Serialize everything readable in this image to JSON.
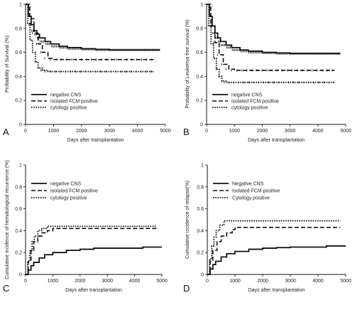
{
  "colors": {
    "line": "#111111",
    "background": "#ffffff"
  },
  "chart_data": [
    {
      "type": "line",
      "panel_letter": "A",
      "xlabel": "Days after transplantation",
      "ylabel": "Probability of Survival (%)",
      "xlim": [
        0,
        5000
      ],
      "ylim": [
        0,
        1
      ],
      "xticks": [
        "0",
        "1000",
        "2000",
        "3000",
        "4000",
        "5000"
      ],
      "yticks": [
        "0",
        "0.2",
        "0.4",
        "0.6",
        "0.8",
        "1"
      ],
      "legend_position": "bottom-left",
      "series": [
        {
          "name": "negative CNS",
          "style": "solid",
          "censored": true,
          "x": [
            0,
            100,
            200,
            300,
            400,
            500,
            700,
            900,
            1200,
            1500,
            2000,
            2500,
            3000,
            3500,
            4000,
            4500,
            4800
          ],
          "y": [
            1.0,
            0.9,
            0.83,
            0.78,
            0.75,
            0.72,
            0.69,
            0.67,
            0.65,
            0.64,
            0.63,
            0.625,
            0.62,
            0.62,
            0.62,
            0.62,
            0.62
          ]
        },
        {
          "name": "isolated FCM positive",
          "style": "dashed",
          "censored": true,
          "x": [
            0,
            150,
            300,
            450,
            600,
            800,
            1000,
            4600
          ],
          "y": [
            1.0,
            0.88,
            0.76,
            0.67,
            0.6,
            0.55,
            0.54,
            0.54
          ]
        },
        {
          "name": "cytology positive",
          "style": "dotted",
          "censored": true,
          "x": [
            0,
            80,
            160,
            250,
            350,
            450,
            600,
            800,
            4600
          ],
          "y": [
            1.0,
            0.84,
            0.7,
            0.6,
            0.52,
            0.47,
            0.45,
            0.44,
            0.44
          ]
        }
      ]
    },
    {
      "type": "line",
      "panel_letter": "B",
      "xlabel": "Days after transplantation",
      "ylabel": "Probability of Leukemia free survival (%)",
      "xlim": [
        0,
        5000
      ],
      "ylim": [
        0,
        1
      ],
      "xticks": [
        "0",
        "1000",
        "2000",
        "3000",
        "4000",
        "5000"
      ],
      "yticks": [
        "0",
        "0.2",
        "0.4",
        "0.6",
        "0.8",
        "1"
      ],
      "legend_position": "bottom-left",
      "series": [
        {
          "name": "negative CNS",
          "style": "solid",
          "censored": true,
          "x": [
            0,
            100,
            200,
            300,
            400,
            500,
            700,
            900,
            1200,
            1500,
            2000,
            2500,
            3000,
            3500,
            4000,
            4500,
            4800
          ],
          "y": [
            1.0,
            0.9,
            0.82,
            0.76,
            0.72,
            0.69,
            0.66,
            0.64,
            0.62,
            0.61,
            0.6,
            0.595,
            0.59,
            0.59,
            0.59,
            0.59,
            0.59
          ]
        },
        {
          "name": "isolated FCM positive",
          "style": "dashed",
          "censored": true,
          "x": [
            0,
            150,
            300,
            450,
            600,
            800,
            1000,
            4600
          ],
          "y": [
            1.0,
            0.82,
            0.68,
            0.58,
            0.5,
            0.46,
            0.45,
            0.45
          ]
        },
        {
          "name": "cytology positive",
          "style": "dotted",
          "censored": true,
          "x": [
            0,
            80,
            160,
            250,
            350,
            450,
            550,
            700,
            4600
          ],
          "y": [
            1.0,
            0.82,
            0.67,
            0.55,
            0.46,
            0.4,
            0.36,
            0.35,
            0.35
          ]
        }
      ]
    },
    {
      "type": "line",
      "panel_letter": "C",
      "xlabel": "Days after transplantation",
      "ylabel": "Cumulative incidence of hematological recurrence (%)",
      "xlim": [
        0,
        5000
      ],
      "ylim": [
        0,
        1
      ],
      "xticks": [
        "0",
        "1000",
        "2000",
        "3000",
        "4000",
        "5000"
      ],
      "yticks": [
        "0",
        "0.2",
        "0.4",
        "0.6",
        "0.8",
        "1"
      ],
      "legend_position": "top-left",
      "series": [
        {
          "name": "negative CNS",
          "style": "solid",
          "censored": false,
          "x": [
            0,
            100,
            200,
            300,
            500,
            700,
            1000,
            1500,
            2000,
            2500,
            3000,
            3500,
            4200,
            4300,
            5000
          ],
          "y": [
            0,
            0.04,
            0.08,
            0.11,
            0.15,
            0.18,
            0.2,
            0.22,
            0.23,
            0.24,
            0.24,
            0.24,
            0.24,
            0.25,
            0.25
          ]
        },
        {
          "name": "isolated FCM positive",
          "style": "dashed",
          "censored": false,
          "x": [
            0,
            100,
            200,
            300,
            450,
            600,
            800,
            1000,
            4800
          ],
          "y": [
            0,
            0.12,
            0.22,
            0.3,
            0.35,
            0.38,
            0.4,
            0.42,
            0.42
          ]
        },
        {
          "name": "cytology positive",
          "style": "dotted",
          "censored": false,
          "x": [
            0,
            80,
            160,
            240,
            320,
            450,
            600,
            800,
            4800
          ],
          "y": [
            0,
            0.12,
            0.22,
            0.3,
            0.35,
            0.4,
            0.42,
            0.44,
            0.44
          ]
        }
      ]
    },
    {
      "type": "line",
      "panel_letter": "D",
      "xlabel": "Days after transplantation",
      "ylabel": "Cumulative incidence of relapse(%)",
      "xlim": [
        0,
        5000
      ],
      "ylim": [
        0,
        1
      ],
      "xticks": [
        "0",
        "1000",
        "2000",
        "3000",
        "4000",
        "5000"
      ],
      "yticks": [
        "0",
        "0.2",
        "0.4",
        "0.6",
        "0.8",
        "1"
      ],
      "legend_position": "top-left",
      "series": [
        {
          "name": "Negative CNS",
          "style": "solid",
          "censored": false,
          "x": [
            0,
            100,
            200,
            300,
            500,
            700,
            1000,
            1500,
            2000,
            2500,
            3000,
            3500,
            4200,
            4300,
            5000
          ],
          "y": [
            0,
            0.05,
            0.09,
            0.12,
            0.16,
            0.19,
            0.21,
            0.23,
            0.24,
            0.245,
            0.25,
            0.25,
            0.25,
            0.26,
            0.26
          ]
        },
        {
          "name": "Isolated FCM positive",
          "style": "dashed",
          "censored": false,
          "x": [
            0,
            100,
            200,
            350,
            500,
            700,
            900,
            1000,
            4800
          ],
          "y": [
            0,
            0.12,
            0.22,
            0.3,
            0.35,
            0.38,
            0.41,
            0.43,
            0.43
          ]
        },
        {
          "name": "Cytology positive",
          "style": "dotted",
          "censored": false,
          "x": [
            0,
            80,
            160,
            240,
            320,
            450,
            600,
            4800
          ],
          "y": [
            0,
            0.14,
            0.26,
            0.34,
            0.4,
            0.45,
            0.49,
            0.49
          ]
        }
      ]
    }
  ]
}
